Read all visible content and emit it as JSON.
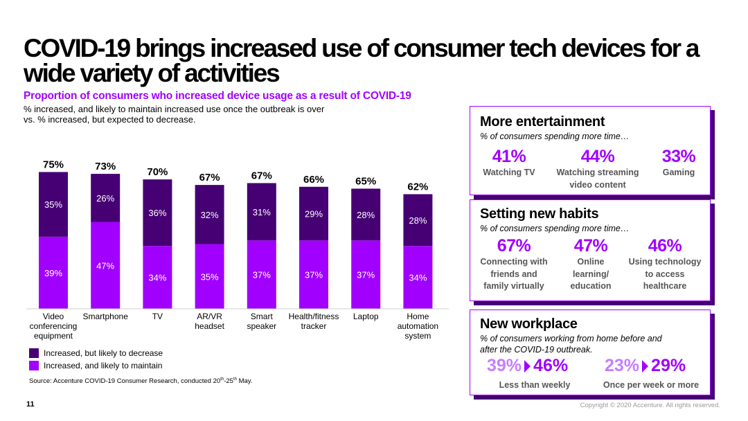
{
  "header": {
    "title": "COVID-19 brings increased use of consumer tech devices for a wide variety of activities",
    "subtitle": "Proportion of consumers who increased device usage as a result of COVID-19",
    "desc_line1": "% increased, and likely to maintain increased use once the outbreak is over",
    "desc_line2": "vs. % increased, but expected to decrease."
  },
  "chart_data": {
    "type": "bar",
    "stacked": true,
    "categories": [
      [
        "Video",
        "conferencing",
        "equipment"
      ],
      [
        "Smartphone"
      ],
      [
        "TV"
      ],
      [
        "AR/VR",
        "headset"
      ],
      [
        "Smart",
        "speaker"
      ],
      [
        "Health/fitness",
        "tracker"
      ],
      [
        "Laptop"
      ],
      [
        "Home",
        "automation",
        "system"
      ]
    ],
    "series": [
      {
        "name": "Increased, and likely to maintain",
        "values": [
          39,
          47,
          34,
          35,
          37,
          37,
          37,
          34
        ],
        "labels": [
          "39%",
          "47%",
          "34%",
          "35%",
          "37%",
          "37%",
          "37%",
          "34%"
        ],
        "color": "#a100ff"
      },
      {
        "name": "Increased, but likely to decrease",
        "values": [
          35,
          26,
          36,
          32,
          31,
          29,
          28,
          28
        ],
        "labels": [
          "35%",
          "26%",
          "36%",
          "32%",
          "31%",
          "29%",
          "28%",
          "28%"
        ],
        "color": "#460073"
      }
    ],
    "totals": [
      75,
      73,
      70,
      67,
      67,
      66,
      65,
      62
    ],
    "total_labels": [
      "75%",
      "73%",
      "70%",
      "67%",
      "67%",
      "66%",
      "65%",
      "62%"
    ],
    "ylim": [
      0,
      80
    ],
    "grid": false
  },
  "legend": {
    "decrease": "Increased, but likely to decrease",
    "maintain": "Increased, and likely to maintain"
  },
  "source": {
    "prefix": "Source: Accenture COVID-19 Consumer Research, conducted 20",
    "sup1": "th",
    "mid": "-25",
    "sup2": "th",
    "suffix": " May."
  },
  "footer": {
    "page": "11",
    "copyright": "Copyright © 2020 Accenture. All rights reserved."
  },
  "panels": {
    "entertainment": {
      "title": "More entertainment",
      "subtitle": "% of consumers spending more time…",
      "stats": [
        {
          "value": "41%",
          "label": [
            "Watching TV"
          ]
        },
        {
          "value": "44%",
          "label": [
            "Watching streaming",
            "video content"
          ]
        },
        {
          "value": "33%",
          "label": [
            "Gaming"
          ]
        }
      ]
    },
    "habits": {
      "title": "Setting new habits",
      "subtitle": "% of consumers spending more time…",
      "stats": [
        {
          "value": "67%",
          "label": [
            "Connecting with",
            "friends and",
            "family virtually"
          ]
        },
        {
          "value": "47%",
          "label": [
            "Online",
            "learning/",
            "education"
          ]
        },
        {
          "value": "46%",
          "label": [
            "Using technology",
            "to access",
            "healthcare"
          ]
        }
      ]
    },
    "workplace": {
      "title": "New workplace",
      "subtitle_line1": "% of consumers working from home before and",
      "subtitle_line2": "after the COVID-19 outbreak.",
      "stats": [
        {
          "before": "39%",
          "after": "46%",
          "label": "Less than weekly"
        },
        {
          "before": "23%",
          "after": "29%",
          "label": "Once per week or more"
        }
      ]
    }
  }
}
